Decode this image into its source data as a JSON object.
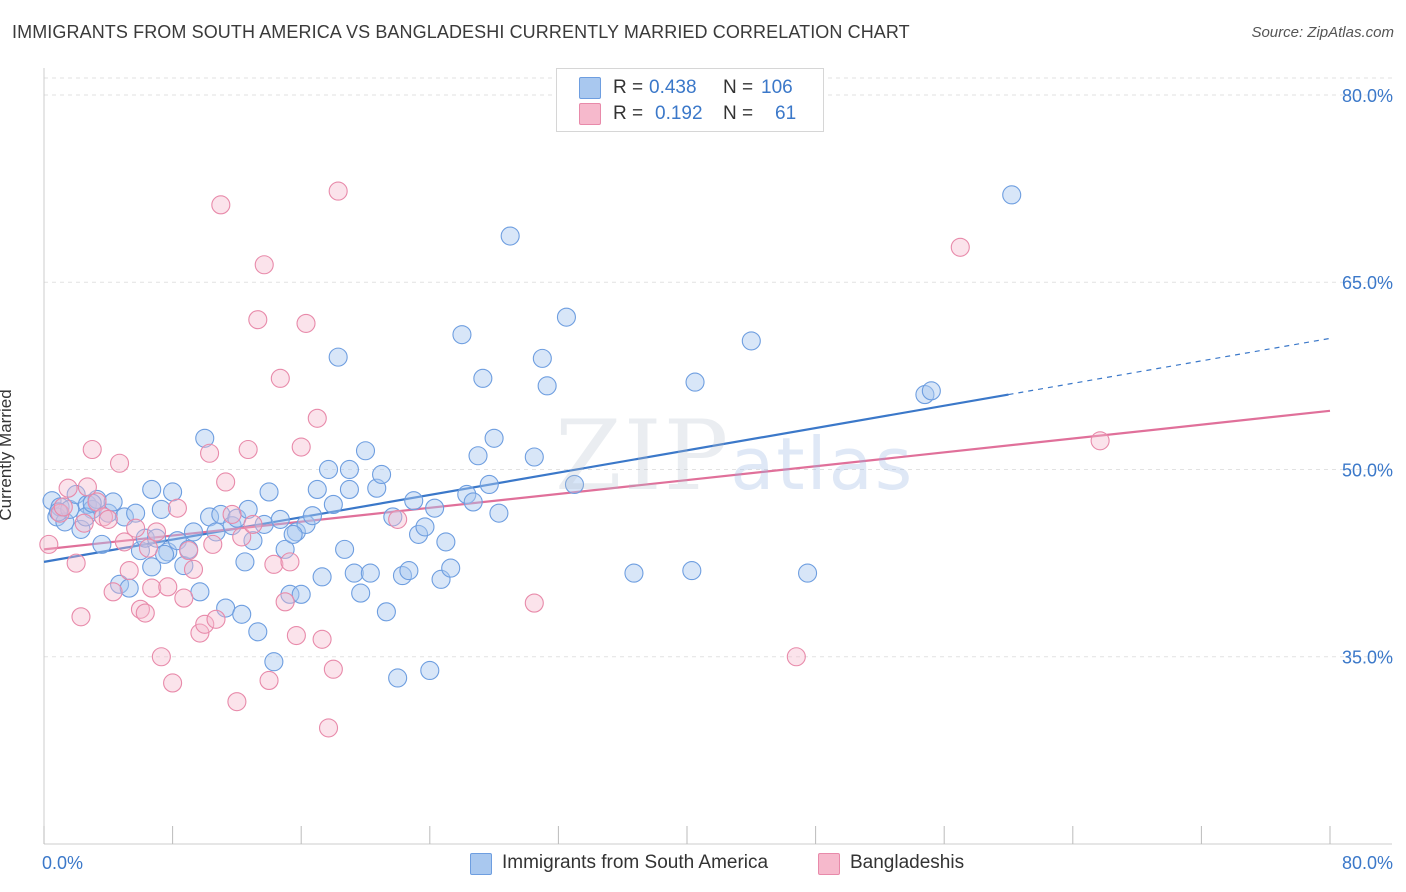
{
  "title": "IMMIGRANTS FROM SOUTH AMERICA VS BANGLADESHI CURRENTLY MARRIED CORRELATION CHART",
  "source": "Source: ZipAtlas.com",
  "watermark": {
    "zip": "ZIP",
    "atlas": "atlas"
  },
  "legend": {
    "rows": [
      {
        "r_label": "R =",
        "r_value": "0.438",
        "n_label": "N =",
        "n_value": "106",
        "color": "#a9c8ef"
      },
      {
        "r_label": "R =",
        "r_value": "0.192",
        "n_label": "N =",
        "n_value": "61",
        "color": "#f6b9cc"
      }
    ]
  },
  "bottom_legend": [
    {
      "label": "Immigrants from South America",
      "color": "#a9c8ef"
    },
    {
      "label": "Bangladeshis",
      "color": "#f6b9cc"
    }
  ],
  "colors": {
    "blue": "#3b78c9",
    "pink": "#e0709a",
    "blue_fill": "#a9c8ef",
    "pink_fill": "#f6b9cc",
    "grid": "#e2e2e2",
    "axis_text": "#3b78c9"
  },
  "chart_data": {
    "type": "scatter",
    "title": "IMMIGRANTS FROM SOUTH AMERICA VS BANGLADESHI CURRENTLY MARRIED CORRELATION CHART",
    "xlabel": "",
    "ylabel": "Currently Married",
    "xlim": [
      0,
      80
    ],
    "ylim": [
      20,
      82
    ],
    "x_tick_labels": [
      "0.0%",
      "80.0%"
    ],
    "y_ticks": [
      35,
      50,
      65,
      80
    ],
    "y_tick_labels": [
      "35.0%",
      "50.0%",
      "65.0%",
      "80.0%"
    ],
    "grid": true,
    "legend_position": "top-center",
    "series": [
      {
        "name": "Immigrants from South America",
        "color": "#3b78c9",
        "R": 0.438,
        "N": 106,
        "trend": {
          "x0": 0,
          "y0": 42.6,
          "x1": 60,
          "y1": 56.0,
          "dashed_to_x": 80,
          "dashed_to_y": 60.5
        },
        "points": [
          [
            0.5,
            47.5
          ],
          [
            0.8,
            46.2
          ],
          [
            1.0,
            47.0
          ],
          [
            1.3,
            45.8
          ],
          [
            1.6,
            46.8
          ],
          [
            2.0,
            48.0
          ],
          [
            2.3,
            45.2
          ],
          [
            2.7,
            47.2
          ],
          [
            3.0,
            46.8
          ],
          [
            3.3,
            47.6
          ],
          [
            3.6,
            44.0
          ],
          [
            4.0,
            46.5
          ],
          [
            4.3,
            47.4
          ],
          [
            4.7,
            40.8
          ],
          [
            5.0,
            46.2
          ],
          [
            5.3,
            40.5
          ],
          [
            5.7,
            46.5
          ],
          [
            6.0,
            43.5
          ],
          [
            6.3,
            44.5
          ],
          [
            6.7,
            48.4
          ],
          [
            7.0,
            44.5
          ],
          [
            7.3,
            46.8
          ],
          [
            7.7,
            43.4
          ],
          [
            8.0,
            48.2
          ],
          [
            8.3,
            44.3
          ],
          [
            8.7,
            42.3
          ],
          [
            9.0,
            43.6
          ],
          [
            9.3,
            45.0
          ],
          [
            9.7,
            40.2
          ],
          [
            10.0,
            52.5
          ],
          [
            10.3,
            46.2
          ],
          [
            10.7,
            45.0
          ],
          [
            11.0,
            46.4
          ],
          [
            11.3,
            38.9
          ],
          [
            11.7,
            45.5
          ],
          [
            12.0,
            46.1
          ],
          [
            12.3,
            38.4
          ],
          [
            12.7,
            46.8
          ],
          [
            13.0,
            44.3
          ],
          [
            13.3,
            37.0
          ],
          [
            13.7,
            45.6
          ],
          [
            14.0,
            48.2
          ],
          [
            14.3,
            34.6
          ],
          [
            14.7,
            46.0
          ],
          [
            15.0,
            43.6
          ],
          [
            15.3,
            40.0
          ],
          [
            15.7,
            45.0
          ],
          [
            16.0,
            40.0
          ],
          [
            16.3,
            45.6
          ],
          [
            16.7,
            46.3
          ],
          [
            17.0,
            48.4
          ],
          [
            17.3,
            41.4
          ],
          [
            17.7,
            50.0
          ],
          [
            18.0,
            47.2
          ],
          [
            18.3,
            59.0
          ],
          [
            18.7,
            43.6
          ],
          [
            19.0,
            48.4
          ],
          [
            19.3,
            41.7
          ],
          [
            19.7,
            40.1
          ],
          [
            20.0,
            51.5
          ],
          [
            20.3,
            41.7
          ],
          [
            20.7,
            48.5
          ],
          [
            21.0,
            49.6
          ],
          [
            21.3,
            38.6
          ],
          [
            21.7,
            46.2
          ],
          [
            22.0,
            33.3
          ],
          [
            22.3,
            41.5
          ],
          [
            22.7,
            41.9
          ],
          [
            23.0,
            47.5
          ],
          [
            23.3,
            44.8
          ],
          [
            23.7,
            45.4
          ],
          [
            24.0,
            33.9
          ],
          [
            24.3,
            46.9
          ],
          [
            24.7,
            41.2
          ],
          [
            25.0,
            44.2
          ],
          [
            25.3,
            42.1
          ],
          [
            26.0,
            60.8
          ],
          [
            26.3,
            48.0
          ],
          [
            26.7,
            47.4
          ],
          [
            27.0,
            51.1
          ],
          [
            27.3,
            57.3
          ],
          [
            27.7,
            48.8
          ],
          [
            28.0,
            52.5
          ],
          [
            28.3,
            46.5
          ],
          [
            29.0,
            68.7
          ],
          [
            30.5,
            51.0
          ],
          [
            31.0,
            58.9
          ],
          [
            31.3,
            56.7
          ],
          [
            32.5,
            62.2
          ],
          [
            33.0,
            48.8
          ],
          [
            36.7,
            41.7
          ],
          [
            40.3,
            41.9
          ],
          [
            40.5,
            57.0
          ],
          [
            44.0,
            60.3
          ],
          [
            47.5,
            41.7
          ],
          [
            54.8,
            56.0
          ],
          [
            55.2,
            56.3
          ],
          [
            60.2,
            72.0
          ],
          [
            0.9,
            46.6
          ],
          [
            2.6,
            46.2
          ],
          [
            3.0,
            47.3
          ],
          [
            6.7,
            42.2
          ],
          [
            7.5,
            43.2
          ],
          [
            12.5,
            42.6
          ],
          [
            15.5,
            44.8
          ],
          [
            19.0,
            50.0
          ]
        ]
      },
      {
        "name": "Bangladeshis",
        "color": "#e0709a",
        "R": 0.192,
        "N": 61,
        "trend": {
          "x0": 0,
          "y0": 43.6,
          "x1": 80,
          "y1": 54.7
        },
        "points": [
          [
            0.3,
            44.0
          ],
          [
            1.0,
            46.5
          ],
          [
            1.5,
            48.5
          ],
          [
            2.0,
            42.5
          ],
          [
            2.3,
            38.2
          ],
          [
            2.7,
            48.6
          ],
          [
            3.0,
            51.6
          ],
          [
            3.3,
            47.4
          ],
          [
            3.7,
            46.2
          ],
          [
            4.0,
            46.0
          ],
          [
            4.3,
            40.2
          ],
          [
            4.7,
            50.5
          ],
          [
            5.0,
            44.2
          ],
          [
            5.3,
            41.9
          ],
          [
            5.7,
            45.3
          ],
          [
            6.0,
            38.8
          ],
          [
            6.3,
            38.5
          ],
          [
            6.7,
            40.5
          ],
          [
            7.0,
            45.0
          ],
          [
            7.3,
            35.0
          ],
          [
            7.7,
            40.6
          ],
          [
            8.0,
            32.9
          ],
          [
            8.3,
            46.9
          ],
          [
            8.7,
            39.7
          ],
          [
            9.0,
            43.5
          ],
          [
            9.3,
            42.0
          ],
          [
            9.7,
            36.9
          ],
          [
            10.0,
            37.6
          ],
          [
            10.3,
            51.3
          ],
          [
            10.7,
            38.0
          ],
          [
            11.0,
            71.2
          ],
          [
            11.3,
            49.0
          ],
          [
            11.7,
            46.4
          ],
          [
            12.0,
            31.4
          ],
          [
            12.3,
            44.6
          ],
          [
            12.7,
            51.6
          ],
          [
            13.0,
            45.6
          ],
          [
            13.3,
            62.0
          ],
          [
            13.7,
            66.4
          ],
          [
            14.0,
            33.1
          ],
          [
            14.3,
            42.4
          ],
          [
            14.7,
            57.3
          ],
          [
            15.0,
            39.4
          ],
          [
            15.3,
            42.6
          ],
          [
            15.7,
            36.7
          ],
          [
            16.0,
            51.8
          ],
          [
            16.3,
            61.7
          ],
          [
            17.0,
            54.1
          ],
          [
            17.3,
            36.4
          ],
          [
            17.7,
            29.3
          ],
          [
            18.0,
            34.0
          ],
          [
            18.3,
            72.3
          ],
          [
            22.0,
            46.0
          ],
          [
            30.5,
            39.3
          ],
          [
            46.8,
            35.0
          ],
          [
            57.0,
            67.8
          ],
          [
            65.7,
            52.3
          ],
          [
            1.2,
            47.0
          ],
          [
            2.5,
            45.7
          ],
          [
            6.5,
            43.7
          ],
          [
            10.5,
            44.0
          ]
        ]
      }
    ]
  }
}
